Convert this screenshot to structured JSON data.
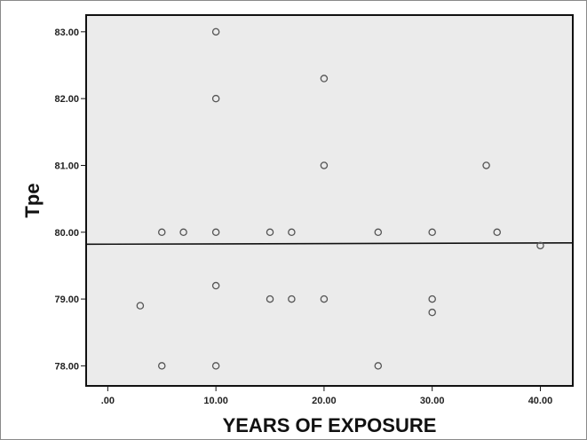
{
  "chart_data": {
    "type": "scatter",
    "xlabel": "YEARS OF EXPOSURE",
    "ylabel": "Tpe",
    "xlim": [
      -2,
      43
    ],
    "ylim": [
      77.7,
      83.25
    ],
    "x_ticks": [
      0,
      10,
      20,
      30,
      40
    ],
    "x_tick_labels": [
      ".00",
      "10.00",
      "20.00",
      "30.00",
      "40.00"
    ],
    "y_ticks": [
      78,
      79,
      80,
      81,
      82,
      83
    ],
    "y_tick_labels": [
      "78.00",
      "79.00",
      "80.00",
      "81.00",
      "82.00",
      "83.00"
    ],
    "grid": false,
    "plot_background": "#ebebeb",
    "marker_color": "#555555",
    "fit_line": {
      "x": [
        -2,
        43
      ],
      "y": [
        79.82,
        79.84
      ],
      "color": "#111111"
    },
    "points": [
      {
        "x": 3,
        "y": 78.9
      },
      {
        "x": 5,
        "y": 80.0
      },
      {
        "x": 5,
        "y": 78.0
      },
      {
        "x": 7,
        "y": 80.0
      },
      {
        "x": 10,
        "y": 83.0
      },
      {
        "x": 10,
        "y": 82.0
      },
      {
        "x": 10,
        "y": 80.0
      },
      {
        "x": 10,
        "y": 79.2
      },
      {
        "x": 10,
        "y": 78.0
      },
      {
        "x": 15,
        "y": 80.0
      },
      {
        "x": 15,
        "y": 79.0
      },
      {
        "x": 17,
        "y": 80.0
      },
      {
        "x": 17,
        "y": 79.0
      },
      {
        "x": 20,
        "y": 82.3
      },
      {
        "x": 20,
        "y": 81.0
      },
      {
        "x": 20,
        "y": 79.0
      },
      {
        "x": 25,
        "y": 80.0
      },
      {
        "x": 25,
        "y": 78.0
      },
      {
        "x": 30,
        "y": 80.0
      },
      {
        "x": 30,
        "y": 79.0
      },
      {
        "x": 30,
        "y": 78.8
      },
      {
        "x": 35,
        "y": 81.0
      },
      {
        "x": 36,
        "y": 80.0
      },
      {
        "x": 40,
        "y": 79.8
      }
    ]
  }
}
